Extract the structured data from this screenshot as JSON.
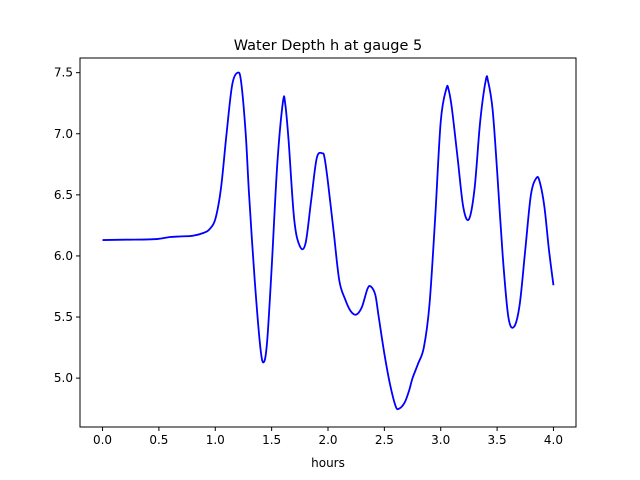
{
  "chart_data": {
    "type": "line",
    "title": "Water Depth h at gauge 5",
    "xlabel": "hours",
    "ylabel": "",
    "xlim": [
      -0.2,
      4.2
    ],
    "ylim": [
      4.6,
      7.62
    ],
    "x_ticks": [
      0.0,
      0.5,
      1.0,
      1.5,
      2.0,
      2.5,
      3.0,
      3.5,
      4.0
    ],
    "x_tick_labels": [
      "0.0",
      "0.5",
      "1.0",
      "1.5",
      "2.0",
      "2.5",
      "3.0",
      "3.5",
      "4.0"
    ],
    "y_ticks": [
      5.0,
      5.5,
      6.0,
      6.5,
      7.0,
      7.5
    ],
    "y_tick_labels": [
      "5.0",
      "5.5",
      "6.0",
      "6.5",
      "7.0",
      "7.5"
    ],
    "grid": false,
    "legend": "none",
    "series": [
      {
        "color": "#0000ff",
        "x": [
          0.0,
          0.2,
          0.4,
          0.5,
          0.6,
          0.7,
          0.8,
          0.9,
          0.95,
          1.0,
          1.05,
          1.1,
          1.15,
          1.2,
          1.23,
          1.27,
          1.3,
          1.35,
          1.4,
          1.43,
          1.46,
          1.5,
          1.55,
          1.6,
          1.62,
          1.65,
          1.7,
          1.75,
          1.8,
          1.85,
          1.9,
          1.95,
          1.97,
          2.0,
          2.05,
          2.1,
          2.15,
          2.2,
          2.25,
          2.3,
          2.35,
          2.38,
          2.42,
          2.45,
          2.5,
          2.55,
          2.6,
          2.63,
          2.68,
          2.72,
          2.75,
          2.8,
          2.85,
          2.9,
          2.95,
          3.0,
          3.05,
          3.07,
          3.1,
          3.15,
          3.2,
          3.25,
          3.3,
          3.35,
          3.4,
          3.42,
          3.46,
          3.5,
          3.55,
          3.6,
          3.65,
          3.7,
          3.75,
          3.8,
          3.85,
          3.88,
          3.92,
          3.96,
          4.0
        ],
        "y": [
          6.13,
          6.133,
          6.135,
          6.14,
          6.155,
          6.16,
          6.165,
          6.19,
          6.22,
          6.3,
          6.55,
          7.0,
          7.4,
          7.5,
          7.42,
          7.0,
          6.5,
          5.8,
          5.25,
          5.13,
          5.3,
          5.9,
          6.75,
          7.26,
          7.25,
          6.95,
          6.3,
          6.08,
          6.1,
          6.45,
          6.8,
          6.84,
          6.8,
          6.6,
          6.2,
          5.8,
          5.65,
          5.55,
          5.52,
          5.58,
          5.73,
          5.75,
          5.68,
          5.5,
          5.2,
          4.95,
          4.77,
          4.75,
          4.8,
          4.9,
          5.0,
          5.12,
          5.25,
          5.6,
          6.3,
          7.1,
          7.37,
          7.36,
          7.2,
          6.8,
          6.4,
          6.3,
          6.55,
          7.1,
          7.44,
          7.43,
          7.2,
          6.7,
          6.0,
          5.5,
          5.42,
          5.6,
          6.05,
          6.5,
          6.64,
          6.6,
          6.4,
          6.05,
          5.76
        ]
      }
    ]
  }
}
